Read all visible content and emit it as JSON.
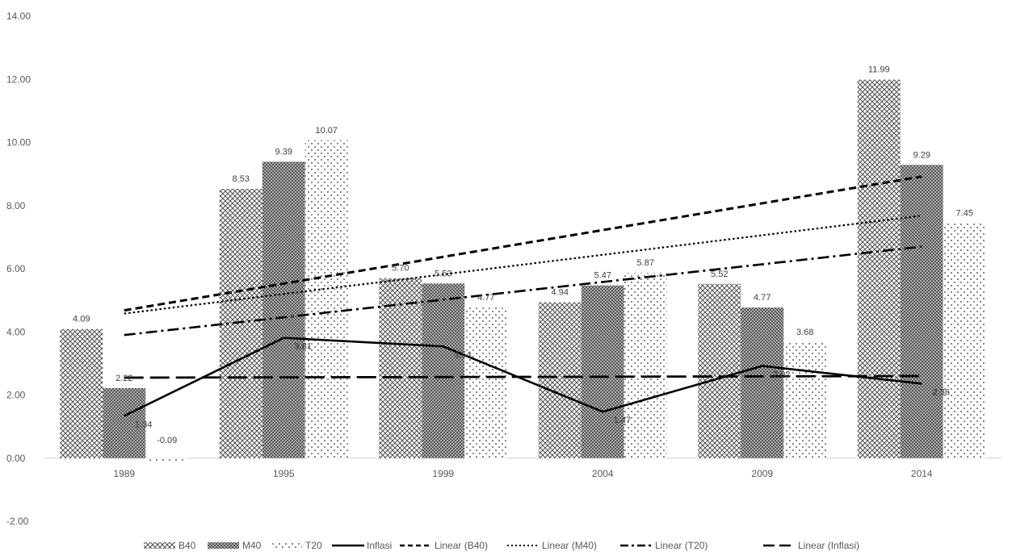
{
  "chart_data": {
    "type": "bar",
    "categories": [
      "1989",
      "1995",
      "1999",
      "2004",
      "2009",
      "2014"
    ],
    "series": [
      {
        "name": "B40",
        "kind": "bar",
        "values": [
          4.09,
          8.53,
          5.7,
          4.94,
          5.52,
          11.99
        ]
      },
      {
        "name": "M40",
        "kind": "bar",
        "values": [
          2.22,
          9.39,
          5.53,
          5.47,
          4.77,
          9.29
        ]
      },
      {
        "name": "T20",
        "kind": "bar",
        "values": [
          -0.09,
          10.07,
          4.77,
          5.87,
          3.68,
          7.45
        ]
      },
      {
        "name": "Inflasi",
        "kind": "line",
        "values": [
          1.34,
          3.81,
          3.54,
          1.47,
          2.92,
          2.36
        ]
      }
    ],
    "data_labels": {
      "B40": [
        "4.09",
        "8.53",
        "5.70",
        "4.94",
        "5.52",
        "11.99"
      ],
      "M40": [
        "2.22",
        "9.39",
        "5.53",
        "5.47",
        "4.77",
        "9.29"
      ],
      "T20": [
        "-0.09",
        "10.07",
        "4.77",
        "5.87",
        "3.68",
        "7.45"
      ],
      "Inflasi": [
        "1.34",
        "3.81",
        "3.54",
        "1.47",
        "2.92",
        "2.36"
      ]
    },
    "trendlines": [
      {
        "name": "Linear (B40)",
        "from": 4.68,
        "to": 8.92,
        "style": "dashed-short"
      },
      {
        "name": "Linear (M40)",
        "from": 4.58,
        "to": 7.68,
        "style": "dotted"
      },
      {
        "name": "Linear (T20)",
        "from": 3.9,
        "to": 6.7,
        "style": "dash-dot"
      },
      {
        "name": "Linear (Inflasi)",
        "from": 2.55,
        "to": 2.6,
        "style": "dashed-long"
      }
    ],
    "y_ticks": [
      "-2.00",
      "0.00",
      "2.00",
      "4.00",
      "6.00",
      "8.00",
      "10.00",
      "12.00",
      "14.00"
    ],
    "ylim": [
      -2,
      14
    ],
    "legend": [
      "B40",
      "M40",
      "T20",
      "Inflasi",
      "Linear (B40)",
      "Linear (M40)",
      "Linear (T20)",
      "Linear (Inflasi)"
    ],
    "legend_position": "bottom",
    "grid": false,
    "title": "",
    "xlabel": "",
    "ylabel": ""
  }
}
